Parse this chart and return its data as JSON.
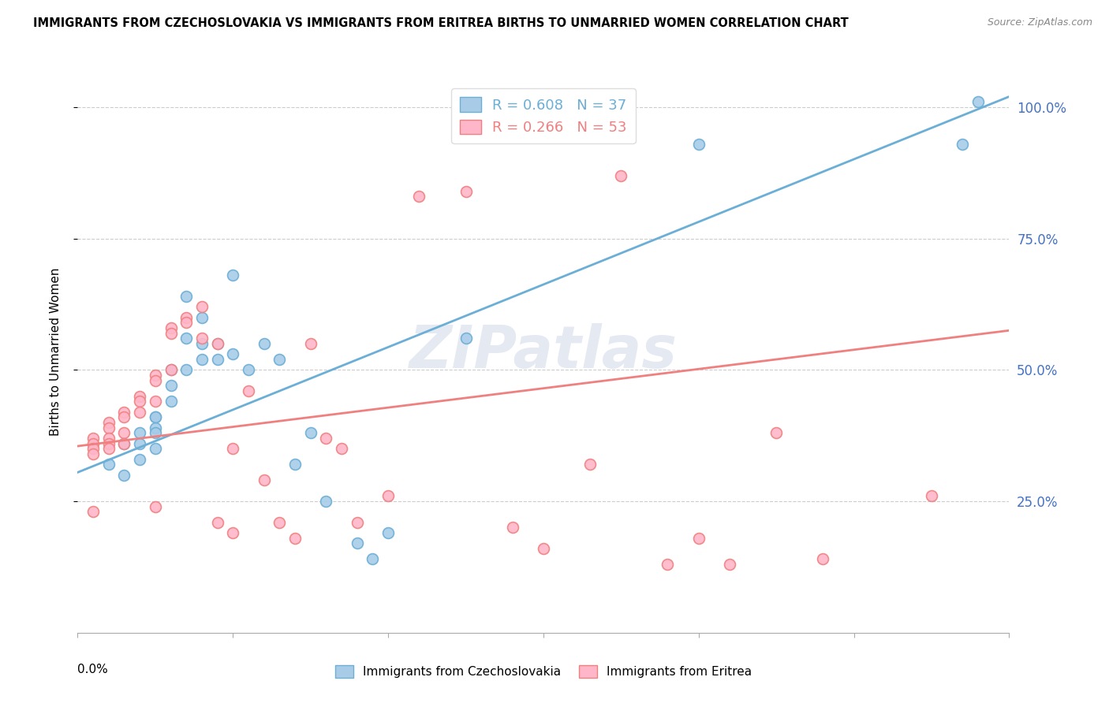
{
  "title": "IMMIGRANTS FROM CZECHOSLOVAKIA VS IMMIGRANTS FROM ERITREA BIRTHS TO UNMARRIED WOMEN CORRELATION CHART",
  "source": "Source: ZipAtlas.com",
  "ylabel": "Births to Unmarried Women",
  "right_yticks": [
    "100.0%",
    "75.0%",
    "50.0%",
    "25.0%"
  ],
  "right_ytick_vals": [
    1.0,
    0.75,
    0.5,
    0.25
  ],
  "xlim": [
    0.0,
    0.06
  ],
  "ylim": [
    0.0,
    1.07
  ],
  "scatter_color1": "#a8cce8",
  "scatter_color2": "#ffb6c8",
  "line_color1": "#6baed6",
  "line_color2": "#f08080",
  "right_tick_color": "#4472c4",
  "grid_color": "#cccccc",
  "background_color": "#ffffff",
  "czech_x": [
    0.002,
    0.003,
    0.003,
    0.004,
    0.004,
    0.004,
    0.005,
    0.005,
    0.005,
    0.005,
    0.005,
    0.006,
    0.006,
    0.006,
    0.007,
    0.007,
    0.007,
    0.008,
    0.008,
    0.008,
    0.009,
    0.009,
    0.01,
    0.01,
    0.011,
    0.012,
    0.013,
    0.014,
    0.015,
    0.016,
    0.018,
    0.019,
    0.02,
    0.025,
    0.04,
    0.057,
    0.058
  ],
  "czech_y": [
    0.32,
    0.36,
    0.3,
    0.38,
    0.36,
    0.33,
    0.41,
    0.39,
    0.41,
    0.38,
    0.35,
    0.5,
    0.47,
    0.44,
    0.64,
    0.56,
    0.5,
    0.6,
    0.55,
    0.52,
    0.55,
    0.52,
    0.68,
    0.53,
    0.5,
    0.55,
    0.52,
    0.32,
    0.38,
    0.25,
    0.17,
    0.14,
    0.19,
    0.56,
    0.93,
    0.93,
    1.01
  ],
  "eritrea_x": [
    0.001,
    0.001,
    0.001,
    0.001,
    0.001,
    0.002,
    0.002,
    0.002,
    0.002,
    0.002,
    0.003,
    0.003,
    0.003,
    0.003,
    0.004,
    0.004,
    0.004,
    0.005,
    0.005,
    0.005,
    0.005,
    0.006,
    0.006,
    0.006,
    0.007,
    0.007,
    0.008,
    0.008,
    0.009,
    0.009,
    0.01,
    0.01,
    0.011,
    0.012,
    0.013,
    0.014,
    0.015,
    0.016,
    0.017,
    0.018,
    0.02,
    0.022,
    0.025,
    0.028,
    0.03,
    0.033,
    0.035,
    0.038,
    0.04,
    0.042,
    0.045,
    0.048,
    0.055
  ],
  "eritrea_y": [
    0.37,
    0.36,
    0.35,
    0.34,
    0.23,
    0.4,
    0.39,
    0.37,
    0.36,
    0.35,
    0.42,
    0.41,
    0.38,
    0.36,
    0.45,
    0.44,
    0.42,
    0.49,
    0.48,
    0.44,
    0.24,
    0.58,
    0.57,
    0.5,
    0.6,
    0.59,
    0.62,
    0.56,
    0.55,
    0.21,
    0.35,
    0.19,
    0.46,
    0.29,
    0.21,
    0.18,
    0.55,
    0.37,
    0.35,
    0.21,
    0.26,
    0.83,
    0.84,
    0.2,
    0.16,
    0.32,
    0.87,
    0.13,
    0.18,
    0.13,
    0.38,
    0.14,
    0.26
  ],
  "czech_line_x": [
    0.0,
    0.06
  ],
  "czech_line_y": [
    0.305,
    1.02
  ],
  "eritrea_line_x": [
    0.0,
    0.06
  ],
  "eritrea_line_y": [
    0.355,
    0.575
  ]
}
